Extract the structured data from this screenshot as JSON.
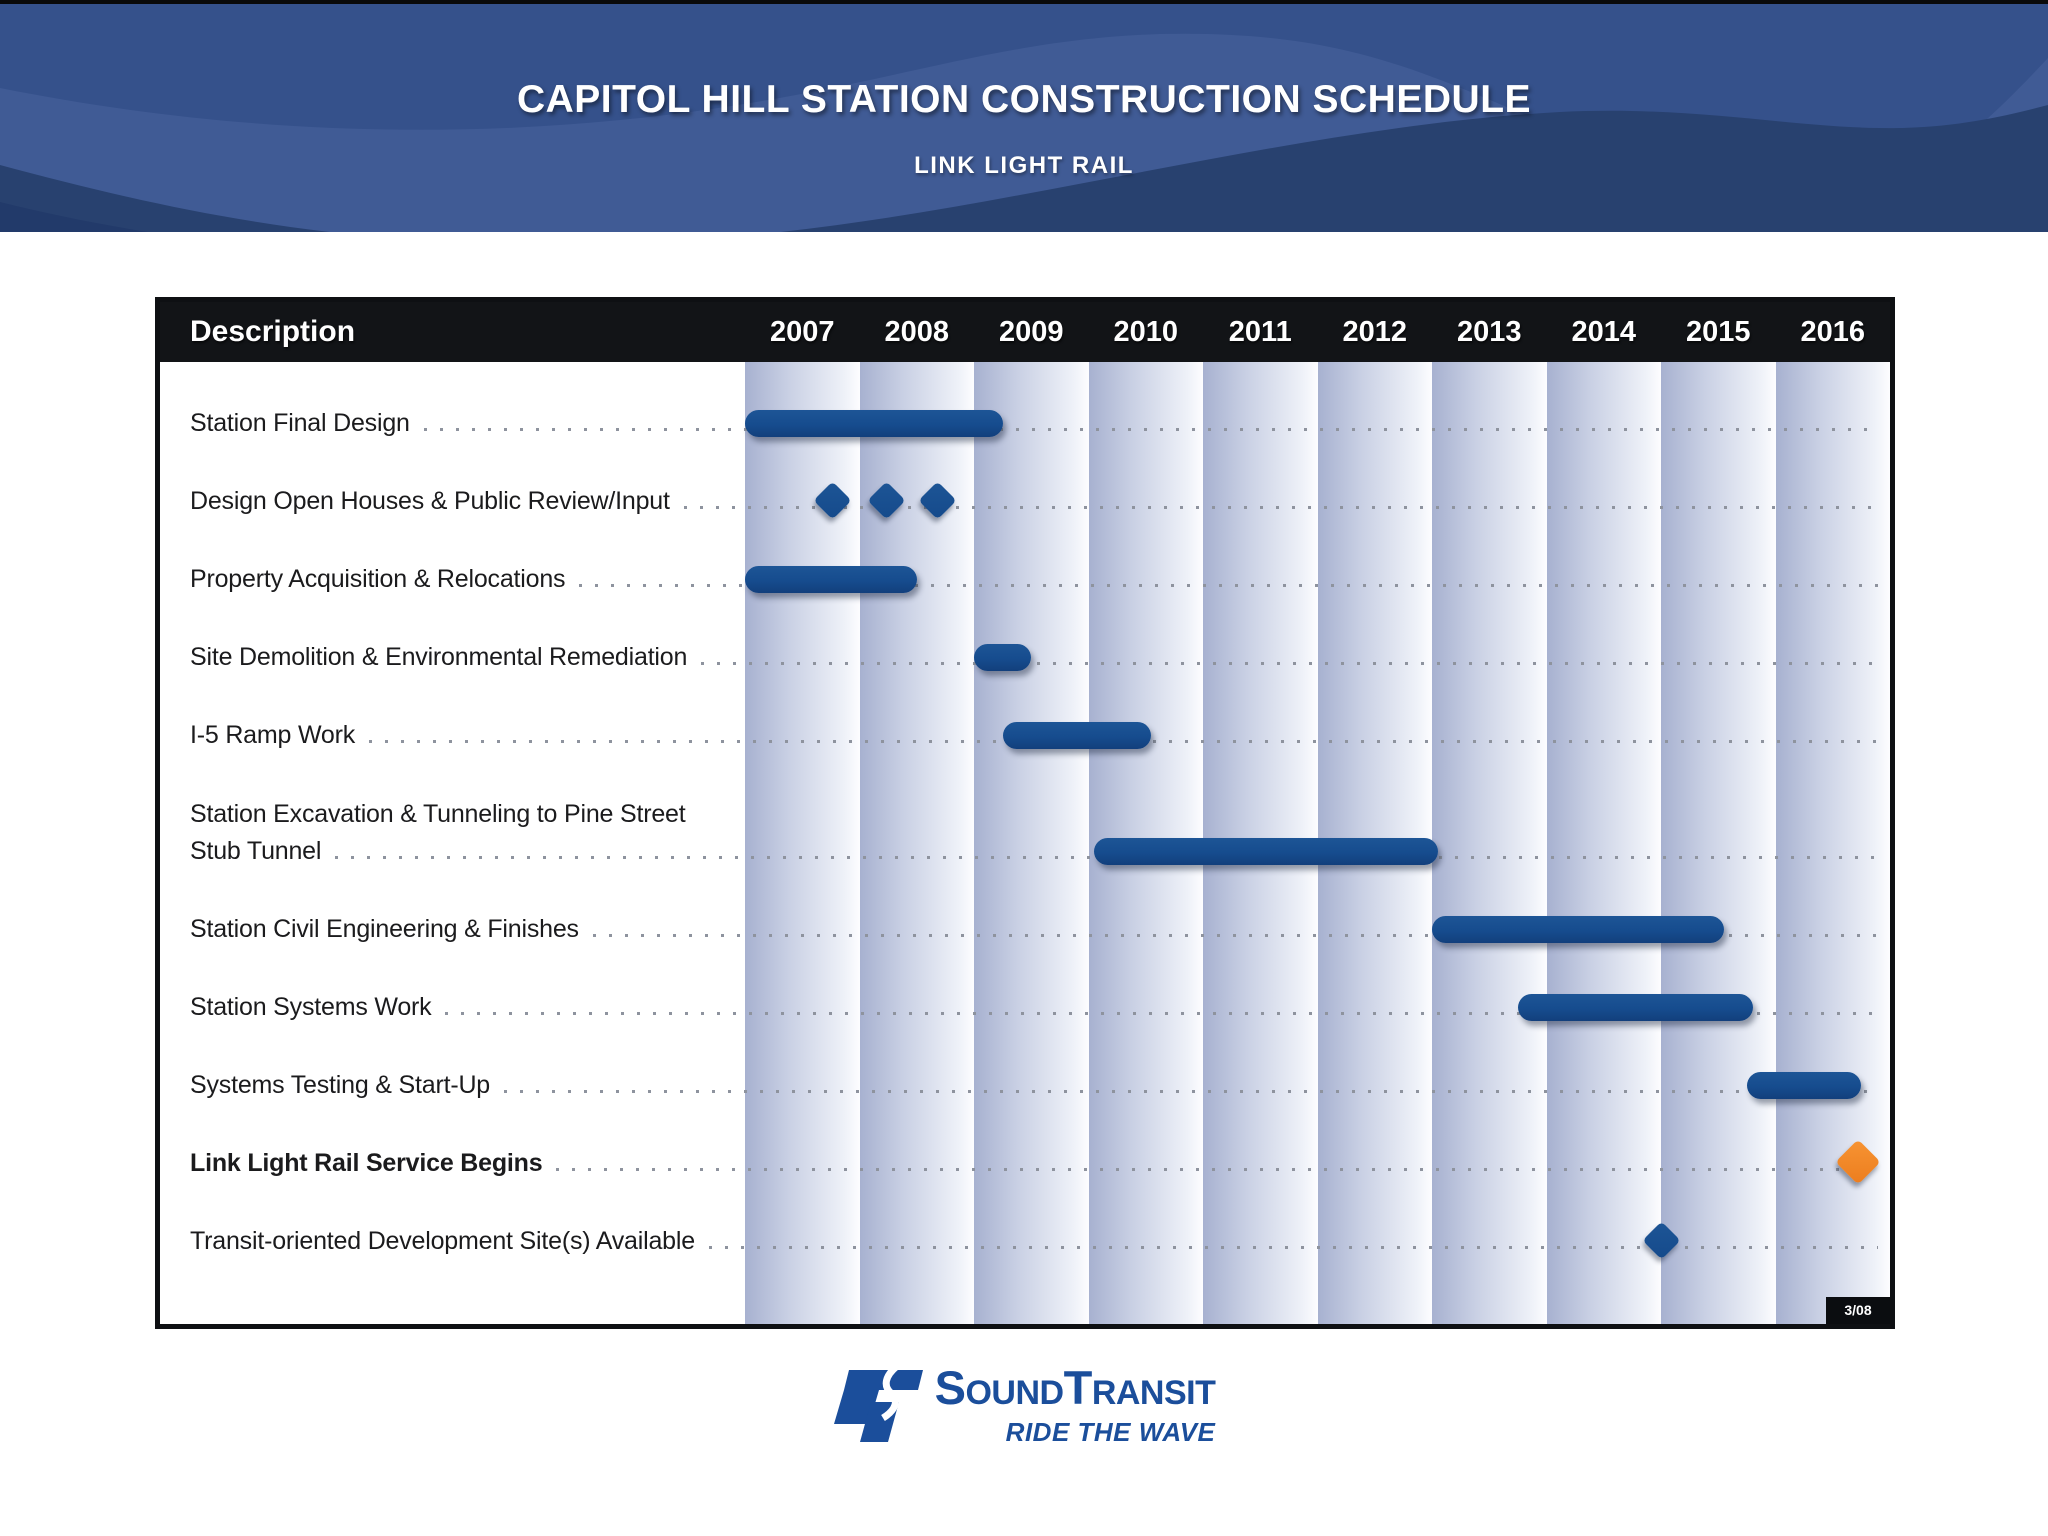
{
  "header": {
    "title": "CAPITOL HILL STATION CONSTRUCTION SCHEDULE",
    "subtitle": "LINK LIGHT RAIL"
  },
  "table": {
    "description_header": "Description",
    "date_stamp": "3/08"
  },
  "chart_data": {
    "type": "gantt",
    "title": "CAPITOL HILL STATION CONSTRUCTION SCHEDULE",
    "subtitle": "LINK LIGHT RAIL",
    "x_axis": {
      "ticks": [
        "2007",
        "2008",
        "2009",
        "2010",
        "2011",
        "2012",
        "2013",
        "2014",
        "2015",
        "2016"
      ],
      "range": [
        2007,
        2017
      ]
    },
    "rows": [
      {
        "label": "Station Final Design",
        "bars": [
          {
            "start": 2007.0,
            "end": 2009.25
          }
        ]
      },
      {
        "label": "Design Open Houses & Public Review/Input",
        "milestones": [
          {
            "year": 2007.76
          },
          {
            "year": 2008.24
          },
          {
            "year": 2008.68
          }
        ]
      },
      {
        "label": "Property Acquisition & Relocations",
        "bars": [
          {
            "start": 2007.0,
            "end": 2008.5
          }
        ]
      },
      {
        "label": "Site Demolition & Environmental Remediation",
        "bars": [
          {
            "start": 2009.0,
            "end": 2009.5
          }
        ]
      },
      {
        "label": "I-5 Ramp Work",
        "bars": [
          {
            "start": 2009.25,
            "end": 2010.55
          }
        ]
      },
      {
        "label": "Station Excavation & Tunneling to Pine Street\nStub Tunnel",
        "bars": [
          {
            "start": 2010.05,
            "end": 2013.05
          }
        ]
      },
      {
        "label": "Station Civil Engineering & Finishes",
        "bars": [
          {
            "start": 2013.0,
            "end": 2015.55
          }
        ]
      },
      {
        "label": "Station Systems Work",
        "bars": [
          {
            "start": 2013.75,
            "end": 2015.8
          }
        ]
      },
      {
        "label": "Systems Testing & Start-Up",
        "bars": [
          {
            "start": 2015.75,
            "end": 2016.75
          }
        ]
      },
      {
        "label": "Link Light Rail Service Begins",
        "bold": true,
        "milestones": [
          {
            "year": 2016.72,
            "color": "orange"
          }
        ]
      },
      {
        "label": "Transit-oriented Development Site(s) Available",
        "milestones": [
          {
            "year": 2015.0
          }
        ]
      }
    ]
  },
  "footer": {
    "brand_sound_initial": "S",
    "brand_sound_rest": "OUND",
    "brand_transit_initial": "T",
    "brand_transit_rest": "RANSIT",
    "tagline": "RIDE THE WAVE"
  },
  "colors": {
    "bar_navy": "#164c8e",
    "milestone_orange": "#f08427",
    "logo_blue": "#1b4e9b",
    "header_base": "#35518b",
    "header_light": "#405b95",
    "header_dark": "#28416f",
    "header_darker": "#223a6a",
    "column_dark_edge": "#a7b1d0",
    "dot_gray": "#8e939e"
  }
}
